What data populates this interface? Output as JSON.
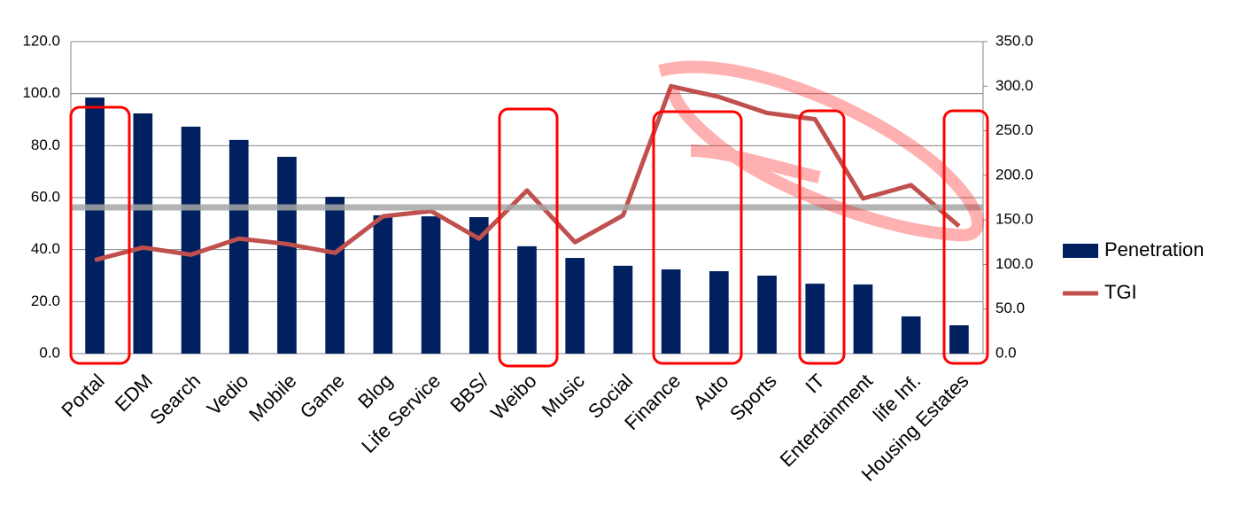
{
  "chart_data": {
    "type": "bar_line",
    "categories": [
      "Portal",
      "EDM",
      "Search",
      "Vedio",
      "Mobile",
      "Game",
      "Blog",
      "Life Service",
      "BBS/",
      "Weibo",
      "Music",
      "Social",
      "Finance",
      "Auto",
      "Sports",
      "IT",
      "Entertainment",
      "life Inf.",
      "Housing Estates"
    ],
    "series": [
      {
        "name": "Penetration",
        "color": "#002060",
        "type": "bar",
        "axis": "y",
        "values": [
          98.5,
          92.4,
          87.3,
          82.2,
          75.7,
          60.3,
          53.2,
          52.8,
          52.5,
          41.3,
          36.8,
          33.8,
          32.4,
          31.7,
          30.0,
          26.9,
          26.6,
          14.3,
          10.9
        ]
      },
      {
        "name": "TGI",
        "color": "#c0504d",
        "type": "line",
        "axis": "y2",
        "values": [
          105,
          119,
          111,
          129,
          123,
          113,
          154,
          160,
          129,
          183,
          125,
          155,
          300,
          288,
          270,
          263,
          174,
          189,
          143
        ]
      }
    ],
    "ylim": [
      0,
      120
    ],
    "yticks": [
      {
        "value": 0,
        "label": "0.0"
      },
      {
        "value": 20,
        "label": "20.0"
      },
      {
        "value": 40,
        "label": "40.0"
      },
      {
        "value": 60,
        "label": "60.0"
      },
      {
        "value": 80,
        "label": "80.0"
      },
      {
        "value": 100,
        "label": "100.0"
      },
      {
        "value": 120,
        "label": "120.0"
      }
    ],
    "y2lim": [
      0,
      350
    ],
    "y2ticks": [
      {
        "value": 0,
        "label": "0.0"
      },
      {
        "value": 50,
        "label": "50.0"
      },
      {
        "value": 100,
        "label": "100.0"
      },
      {
        "value": 150,
        "label": "150.0"
      },
      {
        "value": 200,
        "label": "200.0"
      },
      {
        "value": 250,
        "label": "250.0"
      },
      {
        "value": 300,
        "label": "300.0"
      },
      {
        "value": 350,
        "label": "350.0"
      }
    ],
    "grid": true,
    "legend": "right"
  }
}
